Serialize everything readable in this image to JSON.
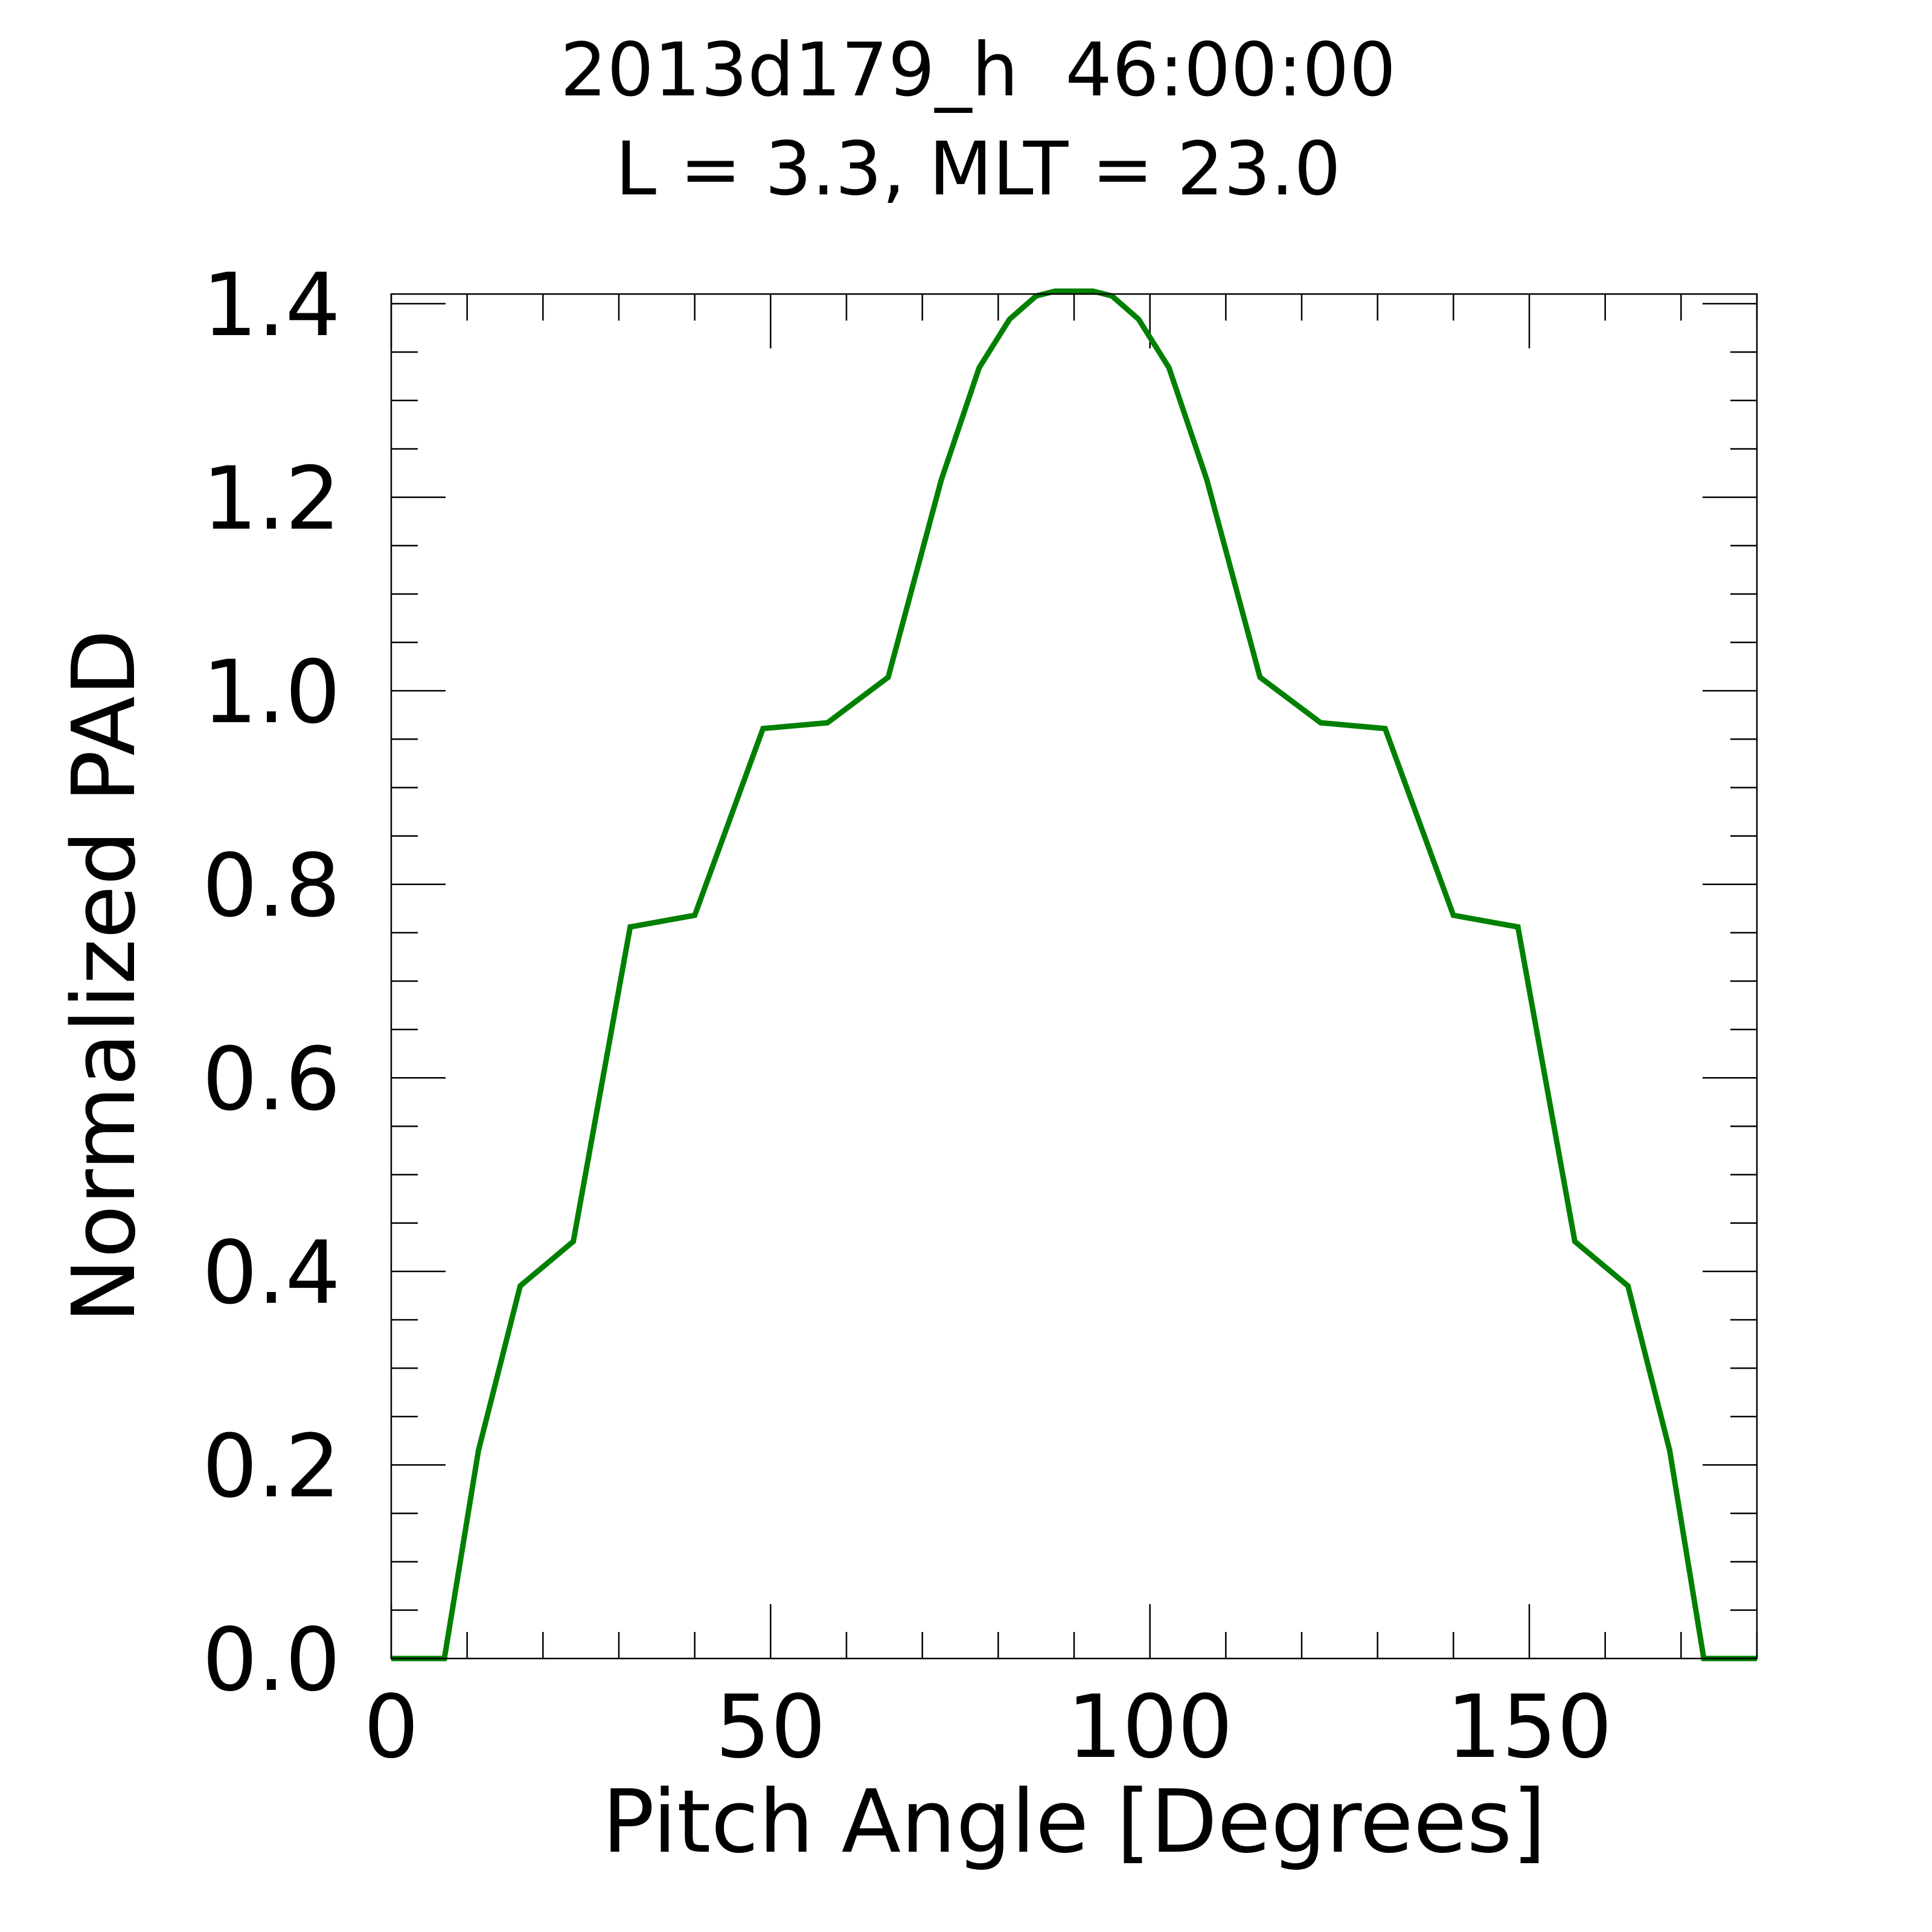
{
  "chart_data": {
    "type": "line",
    "title": "2013d179_h  46:00:00",
    "subtitle": "L = 3.3, MLT = 23.0",
    "xlabel": "Pitch Angle [Degrees]",
    "ylabel": "Normalized PAD",
    "xlim": [
      0,
      180
    ],
    "ylim": [
      0,
      1.41
    ],
    "x_ticks": [
      0,
      50,
      100,
      150
    ],
    "x_tick_labels": [
      "0",
      "50",
      "100",
      "150"
    ],
    "x_minor_step": 10,
    "y_ticks": [
      0,
      0.2,
      0.4,
      0.6,
      0.8,
      1.0,
      1.2,
      1.4
    ],
    "y_tick_labels": [
      "0.0",
      "0.2",
      "0.4",
      "0.6",
      "0.8",
      "1.0",
      "1.2",
      "1.4"
    ],
    "y_minor_step": 0.05,
    "grid": false,
    "series": [
      {
        "color": "#008000",
        "x": [
          0,
          7,
          11.5,
          17,
          24,
          31.5,
          40,
          49,
          57.5,
          65.5,
          72.5,
          77.5,
          81.5,
          85,
          87.5,
          90,
          92.5,
          95,
          98.5,
          102.5,
          107.5,
          114.5,
          122.5,
          131,
          140,
          148.5,
          156,
          163,
          168.5,
          173,
          180
        ],
        "y": [
          0,
          0,
          0.215,
          0.385,
          0.431,
          0.756,
          0.768,
          0.961,
          0.967,
          1.014,
          1.218,
          1.334,
          1.384,
          1.408,
          1.413,
          1.413,
          1.413,
          1.408,
          1.384,
          1.334,
          1.218,
          1.014,
          0.967,
          0.961,
          0.768,
          0.756,
          0.431,
          0.385,
          0.215,
          0,
          0
        ]
      }
    ]
  }
}
